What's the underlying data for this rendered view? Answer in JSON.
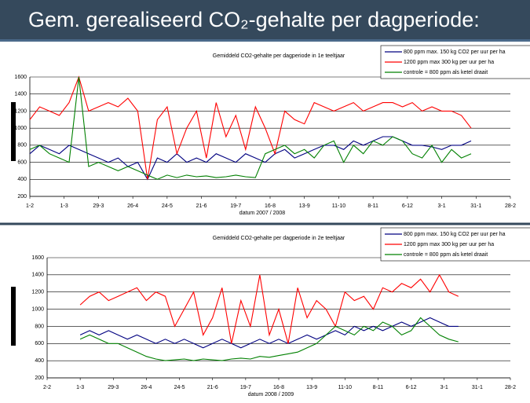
{
  "header": {
    "title": "Gem. gerealiseerd CO₂-gehalte per dagperiode:"
  },
  "chart_data": [
    {
      "type": "line",
      "title": "Gemiddeld CO2-gehalte per dagperiode in 1e teeltjaar",
      "xlabel": "datum 2007 / 2008",
      "xlim": [
        0,
        392
      ],
      "xticks": [
        {
          "value": 0,
          "label": "1-2"
        },
        {
          "value": 28,
          "label": "1-3"
        },
        {
          "value": 56,
          "label": "29-3"
        },
        {
          "value": 84,
          "label": "26-4"
        },
        {
          "value": 112,
          "label": "24-5"
        },
        {
          "value": 140,
          "label": "21-6"
        },
        {
          "value": 168,
          "label": "19-7"
        },
        {
          "value": 196,
          "label": "16-8"
        },
        {
          "value": 224,
          "label": "13-9"
        },
        {
          "value": 252,
          "label": "11-10"
        },
        {
          "value": 280,
          "label": "8-11"
        },
        {
          "value": 308,
          "label": "6-12"
        },
        {
          "value": 336,
          "label": "3-1"
        },
        {
          "value": 364,
          "label": "31-1"
        },
        {
          "value": 392,
          "label": "28-2"
        }
      ],
      "ylim": [
        200,
        1600
      ],
      "yticks": [
        200,
        400,
        600,
        800,
        1000,
        1200,
        1400,
        1600
      ],
      "grid": true,
      "x": [
        0,
        8,
        16,
        24,
        32,
        40,
        48,
        56,
        64,
        72,
        80,
        88,
        96,
        104,
        112,
        120,
        128,
        136,
        144,
        152,
        160,
        168,
        176,
        184,
        192,
        200,
        208,
        216,
        224,
        232,
        240,
        248,
        256,
        264,
        272,
        280,
        288,
        296,
        304,
        312,
        320,
        328,
        336,
        344,
        352,
        360
      ],
      "series": [
        {
          "name": "800 ppm max. 150 kg CO2 per uur per ha",
          "color": "#000080",
          "values": [
            700,
            800,
            750,
            700,
            800,
            750,
            700,
            650,
            600,
            650,
            550,
            600,
            400,
            650,
            600,
            700,
            600,
            650,
            600,
            700,
            650,
            600,
            700,
            650,
            600,
            700,
            750,
            650,
            700,
            750,
            800,
            800,
            750,
            850,
            800,
            850,
            900,
            900,
            850,
            800,
            800,
            780,
            750,
            800,
            800,
            850
          ]
        },
        {
          "name": "1200 ppm max 300 kg per uur per ha",
          "color": "#ff0000",
          "values": [
            1100,
            1250,
            1200,
            1150,
            1300,
            1600,
            1200,
            1250,
            1300,
            1250,
            1350,
            1200,
            400,
            1100,
            1250,
            700,
            1000,
            1200,
            650,
            1300,
            900,
            1150,
            750,
            1250,
            1000,
            700,
            1200,
            1100,
            1050,
            1300,
            1250,
            1200,
            1250,
            1300,
            1200,
            1250,
            1300,
            1300,
            1250,
            1300,
            1200,
            1250,
            1200,
            1200,
            1150,
            1000
          ]
        },
        {
          "name": "controle = 800 ppm als ketel draait",
          "color": "#008000",
          "values": [
            750,
            800,
            700,
            650,
            600,
            1600,
            550,
            600,
            550,
            500,
            550,
            500,
            450,
            400,
            450,
            420,
            450,
            430,
            440,
            420,
            430,
            450,
            430,
            420,
            700,
            750,
            800,
            700,
            750,
            650,
            800,
            850,
            600,
            800,
            700,
            850,
            800,
            900,
            850,
            700,
            650,
            800,
            600,
            750,
            650,
            700
          ]
        }
      ]
    },
    {
      "type": "line",
      "title": "Gemiddeld CO2-gehalte per dagperiode in 2e teeltjaar",
      "xlabel": "datum 2008 / 2009",
      "xlim": [
        0,
        392
      ],
      "xticks": [
        {
          "value": 0,
          "label": "2-2"
        },
        {
          "value": 28,
          "label": "1-3"
        },
        {
          "value": 56,
          "label": "29-3"
        },
        {
          "value": 84,
          "label": "26-4"
        },
        {
          "value": 112,
          "label": "24-5"
        },
        {
          "value": 140,
          "label": "21-6"
        },
        {
          "value": 168,
          "label": "19-7"
        },
        {
          "value": 196,
          "label": "16-8"
        },
        {
          "value": 224,
          "label": "13-9"
        },
        {
          "value": 252,
          "label": "11-10"
        },
        {
          "value": 280,
          "label": "8-11"
        },
        {
          "value": 308,
          "label": "6-12"
        },
        {
          "value": 336,
          "label": "3-1"
        },
        {
          "value": 364,
          "label": "31-1"
        },
        {
          "value": 392,
          "label": "28-2"
        }
      ],
      "ylim": [
        200,
        1600
      ],
      "yticks": [
        200,
        400,
        600,
        800,
        1000,
        1200,
        1400,
        1600
      ],
      "grid": true,
      "x": [
        28,
        36,
        44,
        52,
        60,
        68,
        76,
        84,
        92,
        100,
        108,
        116,
        124,
        132,
        140,
        148,
        156,
        164,
        172,
        180,
        188,
        196,
        204,
        212,
        220,
        228,
        236,
        244,
        252,
        260,
        268,
        276,
        284,
        292,
        300,
        308,
        316,
        324,
        332,
        340,
        348
      ],
      "series": [
        {
          "name": "800 ppm max. 150 kg CO2 per uur per ha",
          "color": "#000080",
          "values": [
            700,
            750,
            700,
            750,
            700,
            650,
            700,
            650,
            600,
            650,
            600,
            650,
            600,
            550,
            600,
            650,
            600,
            550,
            600,
            650,
            600,
            650,
            600,
            650,
            700,
            650,
            700,
            750,
            700,
            800,
            750,
            800,
            750,
            800,
            850,
            800,
            850,
            900,
            850,
            800,
            800
          ]
        },
        {
          "name": "1200 ppm max 300 kg per uur per ha",
          "color": "#ff0000",
          "values": [
            1050,
            1150,
            1200,
            1100,
            1150,
            1200,
            1250,
            1100,
            1200,
            1150,
            800,
            1000,
            1200,
            700,
            900,
            1250,
            600,
            1100,
            800,
            1400,
            700,
            1000,
            600,
            1250,
            900,
            1100,
            1000,
            800,
            1200,
            1100,
            1150,
            1000,
            1250,
            1200,
            1300,
            1250,
            1350,
            1200,
            1400,
            1200,
            1150
          ]
        },
        {
          "name": "controle = 800 ppm als ketel draait",
          "color": "#008000",
          "values": [
            650,
            700,
            650,
            600,
            600,
            550,
            500,
            450,
            420,
            400,
            410,
            420,
            400,
            420,
            410,
            400,
            420,
            430,
            420,
            450,
            440,
            460,
            480,
            500,
            550,
            600,
            700,
            800,
            750,
            700,
            800,
            750,
            850,
            800,
            700,
            750,
            900,
            800,
            700,
            650,
            620
          ]
        }
      ]
    }
  ]
}
